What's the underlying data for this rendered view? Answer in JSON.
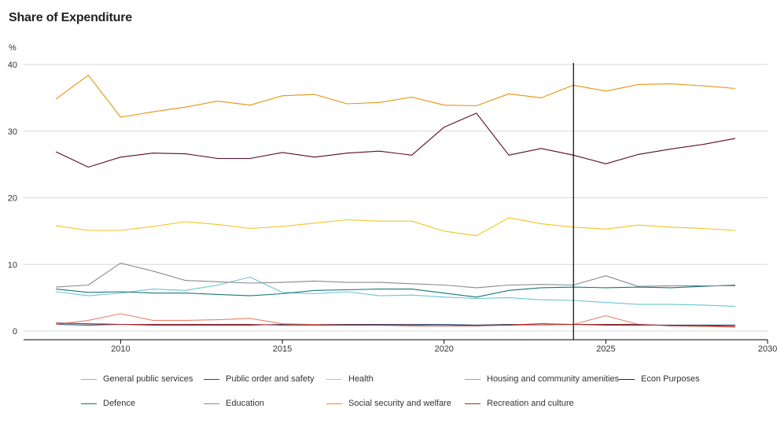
{
  "chart_data": {
    "type": "line",
    "title": "Share of Expenditure",
    "ylabel": "%",
    "xlabel": "",
    "xlim": [
      2007,
      2030
    ],
    "ylim": [
      0,
      40
    ],
    "xticks": [
      2010,
      2015,
      2020,
      2025,
      2030
    ],
    "yticks": [
      0,
      10,
      20,
      30,
      40
    ],
    "grid": true,
    "vline_x": 2024,
    "legend_position": "bottom",
    "x": [
      2008,
      2009,
      2010,
      2011,
      2012,
      2013,
      2014,
      2015,
      2016,
      2017,
      2018,
      2019,
      2020,
      2021,
      2022,
      2023,
      2024,
      2025,
      2026,
      2027,
      2028,
      2029
    ],
    "series": [
      {
        "name": "General public services",
        "color": "#6cc3d5",
        "values": [
          5.9,
          5.3,
          5.7,
          6.3,
          6.1,
          6.9,
          8.1,
          5.8,
          5.6,
          5.9,
          5.3,
          5.4,
          5.1,
          4.9,
          5.0,
          4.7,
          4.6,
          4.3,
          4.0,
          4.0,
          3.9,
          3.7
        ]
      },
      {
        "name": "Public order and safety",
        "color": "#1f4e79",
        "values": [
          1.0,
          0.9,
          1.0,
          0.9,
          0.9,
          0.9,
          0.9,
          1.0,
          1.0,
          1.0,
          1.0,
          1.0,
          1.0,
          0.9,
          1.0,
          0.9,
          1.0,
          0.9,
          0.9,
          0.9,
          0.9,
          0.9
        ]
      },
      {
        "name": "Health",
        "color": "#f3c324",
        "values": [
          15.8,
          15.1,
          15.1,
          15.7,
          16.4,
          16.0,
          15.4,
          15.7,
          16.2,
          16.7,
          16.5,
          16.5,
          15.0,
          14.3,
          17.0,
          16.1,
          15.6,
          15.3,
          15.9,
          15.6,
          15.4,
          15.1
        ]
      },
      {
        "name": "Housing and community amenities",
        "color": "#e8826a",
        "values": [
          1.0,
          1.6,
          2.6,
          1.6,
          1.6,
          1.7,
          1.9,
          1.1,
          1.0,
          0.9,
          0.9,
          0.9,
          0.8,
          0.8,
          0.9,
          0.9,
          1.0,
          2.3,
          1.0,
          0.8,
          0.7,
          0.6
        ]
      },
      {
        "name": "Econ Purposes",
        "color": "#5c0a24",
        "values": [
          26.9,
          24.6,
          26.1,
          26.7,
          26.6,
          25.9,
          25.9,
          26.8,
          26.1,
          26.7,
          27.0,
          26.4,
          30.6,
          32.7,
          26.4,
          27.4,
          26.4,
          25.1,
          26.5,
          27.3,
          28.0,
          28.9
        ]
      },
      {
        "name": "Defence",
        "color": "#16757a",
        "values": [
          6.3,
          5.8,
          5.9,
          5.7,
          5.7,
          5.5,
          5.3,
          5.6,
          6.1,
          6.2,
          6.3,
          6.3,
          5.7,
          5.1,
          6.1,
          6.5,
          6.6,
          6.5,
          6.6,
          6.5,
          6.7,
          6.9
        ]
      },
      {
        "name": "Education",
        "color": "#8a8a8a",
        "values": [
          6.6,
          6.9,
          10.2,
          9.0,
          7.6,
          7.4,
          7.2,
          7.3,
          7.5,
          7.3,
          7.3,
          7.1,
          6.9,
          6.5,
          6.9,
          7.0,
          6.9,
          8.3,
          6.7,
          6.8,
          6.8,
          6.8
        ]
      },
      {
        "name": "Social security and welfare",
        "color": "#e59410",
        "values": [
          34.8,
          38.4,
          32.1,
          32.9,
          33.6,
          34.5,
          33.9,
          35.3,
          35.5,
          34.1,
          34.3,
          35.1,
          33.9,
          33.8,
          35.6,
          35.0,
          36.9,
          36.0,
          37.0,
          37.1,
          36.8,
          36.4
        ]
      },
      {
        "name": "Recreation and culture",
        "color": "#b32424",
        "values": [
          1.2,
          1.1,
          1.0,
          1.0,
          1.0,
          1.0,
          1.0,
          0.9,
          0.9,
          0.9,
          0.9,
          0.8,
          0.8,
          0.8,
          0.9,
          1.1,
          1.0,
          1.0,
          1.0,
          0.8,
          0.8,
          0.7
        ]
      }
    ]
  }
}
